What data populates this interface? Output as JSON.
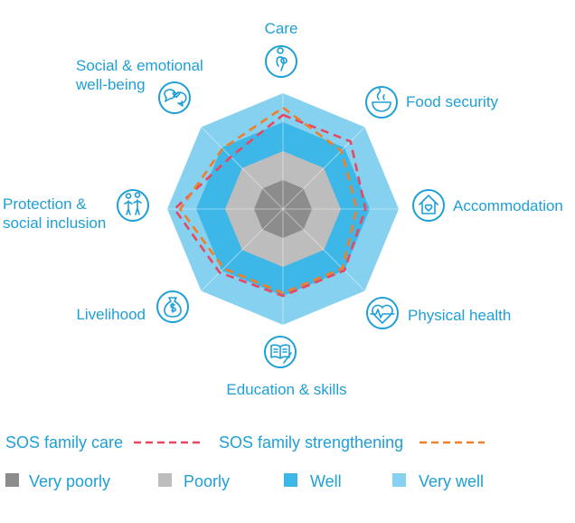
{
  "chart_data": {
    "type": "radar",
    "axes": [
      {
        "label": [
          "Care"
        ],
        "icon": "mother-child-icon"
      },
      {
        "label": [
          "Food security"
        ],
        "icon": "bowl-icon"
      },
      {
        "label": [
          "Accommodation"
        ],
        "icon": "house-heart-icon"
      },
      {
        "label": [
          "Physical health"
        ],
        "icon": "heartbeat-icon"
      },
      {
        "label": [
          "Education & skills"
        ],
        "icon": "book-pencil-icon"
      },
      {
        "label": [
          "Livelihood"
        ],
        "icon": "money-bag-icon"
      },
      {
        "label": [
          "Protection &",
          "social inclusion"
        ],
        "icon": "people-icon"
      },
      {
        "label": [
          "Social & emotional",
          "well-being"
        ],
        "icon": "speech-bubbles-icon"
      }
    ],
    "levels": [
      {
        "name": "Very poorly",
        "color": "#8c8c8c"
      },
      {
        "name": "Poorly",
        "color": "#bdbdbd"
      },
      {
        "name": "Well",
        "color": "#3db7e7"
      },
      {
        "name": "Very well",
        "color": "#86d1f0"
      }
    ],
    "range": [
      0,
      4
    ],
    "series": [
      {
        "name": "SOS family care",
        "color": "#e8475f",
        "values": [
          3.25,
          3.3,
          2.85,
          3.0,
          3.0,
          3.1,
          3.75,
          2.55
        ]
      },
      {
        "name": "SOS family strengthening",
        "color": "#f07f26",
        "values": [
          3.5,
          2.85,
          2.55,
          2.9,
          2.9,
          2.9,
          3.55,
          2.95
        ]
      }
    ]
  },
  "legend": {
    "series": [
      {
        "name": "SOS family care",
        "color": "#e8475f"
      },
      {
        "name": "SOS family strengthening",
        "color": "#f07f26"
      }
    ],
    "levels": [
      {
        "name": "Very poorly",
        "color": "#8c8c8c"
      },
      {
        "name": "Poorly",
        "color": "#bdbdbd"
      },
      {
        "name": "Well",
        "color": "#3db7e7"
      },
      {
        "name": "Very well",
        "color": "#86d1f0"
      }
    ]
  },
  "colors": {
    "text": "#1e9fd6",
    "grid": "#ffffff"
  }
}
